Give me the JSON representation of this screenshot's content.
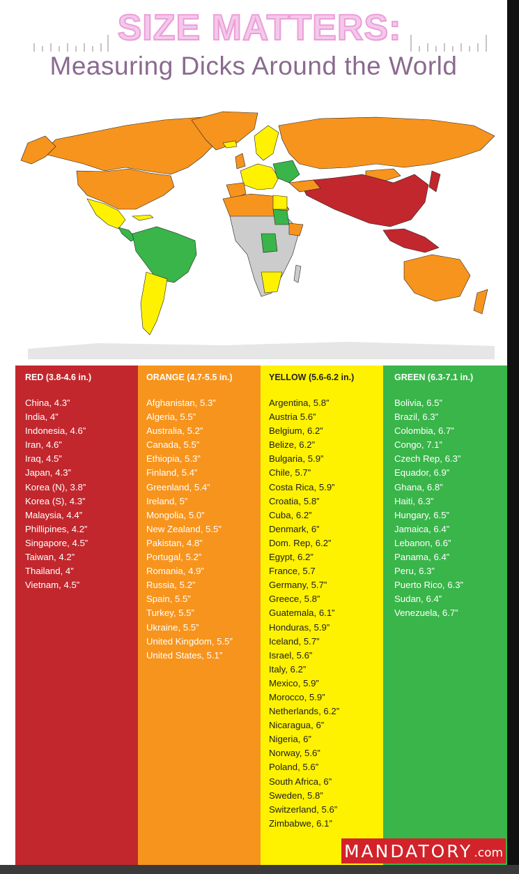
{
  "header": {
    "title": "SIZE MATTERS:",
    "subtitle": "Measuring Dicks Around the World"
  },
  "colors": {
    "red": "#c1272d",
    "orange": "#f7941d",
    "yellow": "#fff200",
    "green": "#39b54a",
    "no_data": "#cccccc",
    "title_pink": "#f4c8eb",
    "subtitle_purple": "#8a6a8f"
  },
  "legend": {
    "red": {
      "heading": "RED (3.8-4.6 in.)",
      "items": [
        "China, 4.3”",
        "India, 4”",
        "Indonesia, 4.6”",
        "Iran, 4.6”",
        "Iraq, 4.5”",
        "Japan, 4.3”",
        "Korea (N), 3.8”",
        "Korea (S), 4.3”",
        "Malaysia, 4.4”",
        "Phillipines, 4.2”",
        "Singapore, 4.5”",
        "Taiwan, 4.2”",
        "Thailand, 4”",
        "Vietnam, 4.5”"
      ]
    },
    "orange": {
      "heading": "ORANGE (4.7-5.5 in.)",
      "items": [
        "Afghanistan, 5.3”",
        "Algeria, 5.5”",
        "Australia, 5.2”",
        "Canada, 5.5”",
        "Ethiopia, 5.3”",
        "Finland, 5.4”",
        "Greenland, 5.4”",
        "Ireland, 5”",
        "Mongolia, 5.0”",
        "New Zealand, 5.5”",
        "Pakistan, 4.8”",
        "Portugal, 5.2”",
        "Romania, 4.9”",
        "Russia, 5.2”",
        "Spain, 5.5”",
        "Turkey, 5.5”",
        "Ukraine, 5.5”",
        "United Kingdom, 5.5”",
        "United States, 5.1”"
      ]
    },
    "yellow": {
      "heading": "YELLOW (5.6-6.2 in.)",
      "items": [
        "Argentina, 5.8”",
        "Austria 5.6”",
        "Belgium, 6.2”",
        "Belize, 6.2”",
        "Bulgaria, 5.9”",
        "Chile, 5.7”",
        "Costa Rica, 5.9”",
        "Croatia, 5.8”",
        "Cuba, 6.2”",
        "Denmark, 6”",
        "Dom. Rep, 6.2”",
        "Egypt, 6.2”",
        "France, 5.7",
        "Germany, 5.7”",
        "Greece, 5.8”",
        "Guatemala, 6.1”",
        "Honduras, 5.9”",
        "Iceland, 5.7”",
        "Israel, 5.6”",
        "Italy, 6.2”",
        "Mexico, 5.9”",
        "Morocco, 5.9”",
        "Netherlands, 6.2”",
        "Nicaragua, 6”",
        "Nigeria, 6”",
        "Norway, 5.6”",
        "Poland, 5.6”",
        "South Africa, 6”",
        "Sweden, 5.8”",
        "Switzerland, 5.6”",
        "Zimbabwe, 6.1”"
      ]
    },
    "green": {
      "heading": "GREEN (6.3-7.1 in.)",
      "items": [
        "Bolivia, 6.5”",
        "Brazil, 6.3”",
        "Colombia, 6.7”",
        "Congo, 7.1”",
        "Czech Rep, 6.3”",
        "Equador, 6.9”",
        "Ghana, 6.8”",
        "Haiti, 6.3”",
        "Hungary, 6.5”",
        "Jamaica, 6.4”",
        "Lebanon, 6.6”",
        "Panama, 6.4”",
        "Peru, 6.3”",
        "Puerto Rico, 6.3”",
        "Sudan, 6.4”",
        "Venezuela, 6.7”"
      ]
    }
  },
  "brand": {
    "name": "MANDATORY",
    "suffix": ".com"
  }
}
